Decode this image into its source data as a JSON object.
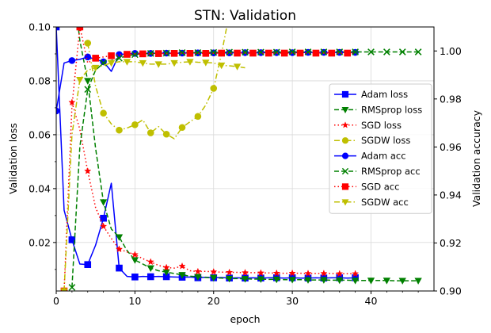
{
  "chart_data": {
    "type": "line",
    "title": "STN: Validation",
    "xlabel": "epoch",
    "ylabel_left": "Validation loss",
    "ylabel_right": "Validation accuracy",
    "xlim": [
      0,
      48
    ],
    "ylim_left": [
      0.002,
      0.1
    ],
    "ylim_right": [
      0.9,
      1.01
    ],
    "x_ticks": [
      0,
      10,
      20,
      30,
      40
    ],
    "x_tick_labels": [
      "0",
      "10",
      "20",
      "30",
      "40"
    ],
    "y_left_ticks": [
      0.02,
      0.04,
      0.06,
      0.08,
      0.1
    ],
    "y_left_tick_labels": [
      "0.02",
      "0.04",
      "0.06",
      "0.08",
      "0.10"
    ],
    "y_right_ticks": [
      0.9,
      0.92,
      0.94,
      0.96,
      0.98,
      1.0
    ],
    "y_right_tick_labels": [
      "0.90",
      "0.92",
      "0.94",
      "0.96",
      "0.98",
      "1.00"
    ],
    "grid": true,
    "legend_position": "right",
    "series": [
      {
        "name": "Adam loss",
        "axis": "left",
        "color": "#0000ff",
        "dash": "solid",
        "marker": "square",
        "mark_every": 2,
        "x": [
          0,
          1,
          2,
          3,
          4,
          5,
          6,
          7,
          8,
          9,
          10,
          11,
          12,
          13,
          14,
          15,
          16,
          17,
          18,
          19,
          20,
          21,
          22,
          23,
          24,
          25,
          26,
          27,
          28,
          29,
          30,
          31,
          32,
          33,
          34,
          35,
          36,
          37,
          38
        ],
        "y": [
          0.1,
          0.032,
          0.021,
          0.012,
          0.0118,
          0.019,
          0.029,
          0.042,
          0.0105,
          0.0074,
          0.0072,
          0.0074,
          0.0073,
          0.0074,
          0.0073,
          0.0072,
          0.0071,
          0.0072,
          0.0069,
          0.0071,
          0.0069,
          0.007,
          0.0068,
          0.0069,
          0.0068,
          0.0069,
          0.0068,
          0.0069,
          0.0069,
          0.0068,
          0.0069,
          0.0068,
          0.0068,
          0.0069,
          0.0068,
          0.0069,
          0.0069,
          0.0068,
          0.0069
        ]
      },
      {
        "name": "RMSprop loss",
        "axis": "left",
        "color": "#008000",
        "dash": "dashed",
        "marker": "triangle-down",
        "mark_every": 2,
        "x": [
          2,
          3,
          4,
          5,
          6,
          7,
          8,
          9,
          10,
          11,
          12,
          13,
          14,
          15,
          16,
          17,
          18,
          19,
          20,
          21,
          22,
          23,
          24,
          25,
          26,
          27,
          28,
          29,
          30,
          31,
          32,
          33,
          34,
          35,
          36,
          37,
          38,
          39,
          40,
          41,
          42,
          43,
          44,
          45,
          46
        ],
        "y": [
          0.12,
          0.095,
          0.08,
          0.055,
          0.035,
          0.025,
          0.022,
          0.017,
          0.0135,
          0.012,
          0.0105,
          0.0095,
          0.009,
          0.0085,
          0.008,
          0.0075,
          0.0073,
          0.007,
          0.0069,
          0.0068,
          0.0066,
          0.0066,
          0.0065,
          0.0064,
          0.0064,
          0.0063,
          0.0063,
          0.0062,
          0.0062,
          0.0062,
          0.0061,
          0.0061,
          0.0061,
          0.006,
          0.006,
          0.006,
          0.0059,
          0.0059,
          0.0059,
          0.0059,
          0.0059,
          0.0058,
          0.0058,
          0.0058,
          0.0058
        ]
      },
      {
        "name": "SGD loss",
        "axis": "left",
        "color": "#ff0000",
        "dash": "dotted",
        "marker": "star",
        "mark_every": 2,
        "x": [
          2,
          3,
          4,
          5,
          6,
          7,
          8,
          9,
          10,
          11,
          12,
          13,
          14,
          15,
          16,
          17,
          18,
          19,
          20,
          21,
          22,
          23,
          24,
          25,
          26,
          27,
          28,
          29,
          30,
          31,
          32,
          33,
          34,
          35,
          36,
          37,
          38
        ],
        "y": [
          0.072,
          0.062,
          0.0465,
          0.033,
          0.026,
          0.0215,
          0.0175,
          0.0165,
          0.0155,
          0.014,
          0.0128,
          0.0115,
          0.0107,
          0.0105,
          0.0112,
          0.0095,
          0.0092,
          0.0093,
          0.0091,
          0.009,
          0.0089,
          0.0089,
          0.0088,
          0.0088,
          0.0087,
          0.0087,
          0.0086,
          0.0086,
          0.0086,
          0.0086,
          0.0085,
          0.0085,
          0.0085,
          0.0085,
          0.0084,
          0.0084,
          0.0084
        ]
      },
      {
        "name": "SGDW loss",
        "axis": "left",
        "color": "#bfbf00",
        "dash": "dashdot",
        "marker": "circle",
        "mark_every": 2,
        "x": [
          4,
          5,
          6,
          7,
          8,
          9,
          10,
          11,
          12,
          13,
          14,
          15,
          16,
          17,
          18,
          19,
          20,
          21,
          22,
          23
        ],
        "y": [
          0.094,
          0.078,
          0.068,
          0.064,
          0.0617,
          0.0625,
          0.0637,
          0.0655,
          0.0607,
          0.063,
          0.0602,
          0.0585,
          0.0627,
          0.0648,
          0.0668,
          0.071,
          0.0772,
          0.09,
          0.105,
          0.11
        ]
      },
      {
        "name": "Adam acc",
        "axis": "right",
        "color": "#0000ff",
        "dash": "solid",
        "marker": "circle",
        "mark_every": 2,
        "x": [
          0,
          1,
          2,
          3,
          4,
          5,
          6,
          7,
          8,
          9,
          10,
          11,
          12,
          13,
          14,
          15,
          16,
          17,
          18,
          19,
          20,
          21,
          22,
          23,
          24,
          25,
          26,
          27,
          28,
          29,
          30,
          31,
          32,
          33,
          34,
          35,
          36,
          37,
          38
        ],
        "y": [
          0.975,
          0.995,
          0.996,
          0.9965,
          0.9975,
          0.9965,
          0.9955,
          0.9915,
          0.9985,
          0.9988,
          0.999,
          0.999,
          0.999,
          0.9991,
          0.9991,
          0.9991,
          0.9991,
          0.9992,
          0.9992,
          0.9992,
          0.9992,
          0.9992,
          0.9992,
          0.9993,
          0.9993,
          0.9993,
          0.9993,
          0.9993,
          0.9993,
          0.9993,
          0.9993,
          0.9993,
          0.9994,
          0.9994,
          0.9994,
          0.9994,
          0.9994,
          0.9994,
          0.9994
        ]
      },
      {
        "name": "RMSprop acc",
        "axis": "right",
        "color": "#008000",
        "dash": "dashed",
        "marker": "x",
        "mark_every": 2,
        "x": [
          2,
          3,
          4,
          5,
          6,
          7,
          8,
          9,
          10,
          11,
          12,
          13,
          14,
          15,
          16,
          17,
          18,
          19,
          20,
          21,
          22,
          23,
          24,
          25,
          26,
          27,
          28,
          29,
          30,
          31,
          32,
          33,
          34,
          35,
          36,
          37,
          38,
          39,
          40,
          41,
          42,
          43,
          44,
          45,
          46
        ],
        "y": [
          0.9015,
          0.96,
          0.984,
          0.992,
          0.995,
          0.996,
          0.997,
          0.998,
          0.9985,
          0.9988,
          0.999,
          0.999,
          0.9991,
          0.9992,
          0.9993,
          0.9993,
          0.9993,
          0.9994,
          0.9994,
          0.9994,
          0.9995,
          0.9995,
          0.9995,
          0.9995,
          0.9995,
          0.9995,
          0.9995,
          0.9995,
          0.9996,
          0.9996,
          0.9996,
          0.9996,
          0.9996,
          0.9996,
          0.9996,
          0.9996,
          0.9996,
          0.9996,
          0.9996,
          0.9996,
          0.9996,
          0.9996,
          0.9996,
          0.9996,
          0.9996
        ]
      },
      {
        "name": "SGD acc",
        "axis": "right",
        "color": "#ff0000",
        "dash": "dotted",
        "marker": "square",
        "mark_every": 2,
        "x": [
          1,
          2,
          3,
          4,
          5,
          6,
          7,
          8,
          9,
          10,
          11,
          12,
          13,
          14,
          15,
          16,
          17,
          18,
          19,
          20,
          21,
          22,
          23,
          24,
          25,
          26,
          27,
          28,
          29,
          30,
          31,
          32,
          33,
          34,
          35,
          36,
          37,
          38
        ],
        "y": [
          0.9,
          0.977,
          1.01,
          0.995,
          0.997,
          0.9975,
          0.998,
          0.9985,
          0.9986,
          0.9988,
          0.9988,
          0.9988,
          0.9989,
          0.9989,
          0.999,
          0.999,
          0.999,
          0.999,
          0.999,
          0.999,
          0.9991,
          0.9991,
          0.9991,
          0.9991,
          0.9991,
          0.9991,
          0.9991,
          0.9991,
          0.9991,
          0.9991,
          0.9991,
          0.9991,
          0.9991,
          0.9991,
          0.9991,
          0.9991,
          0.9991,
          0.9991
        ]
      },
      {
        "name": "SGDW acc",
        "axis": "right",
        "color": "#bfbf00",
        "dash": "dashdot",
        "marker": "triangle-down",
        "mark_every": 2,
        "x": [
          1,
          2,
          3,
          4,
          5,
          6,
          7,
          8,
          9,
          10,
          11,
          12,
          13,
          14,
          15,
          16,
          17,
          18,
          19,
          20,
          21,
          22,
          23,
          24
        ],
        "y": [
          0.9,
          0.965,
          0.988,
          0.992,
          0.993,
          0.994,
          0.995,
          0.9955,
          0.9955,
          0.9955,
          0.995,
          0.9945,
          0.9945,
          0.9945,
          0.995,
          0.9953,
          0.9955,
          0.9953,
          0.9952,
          0.995,
          0.994,
          0.9938,
          0.9935,
          0.993
        ]
      }
    ]
  }
}
